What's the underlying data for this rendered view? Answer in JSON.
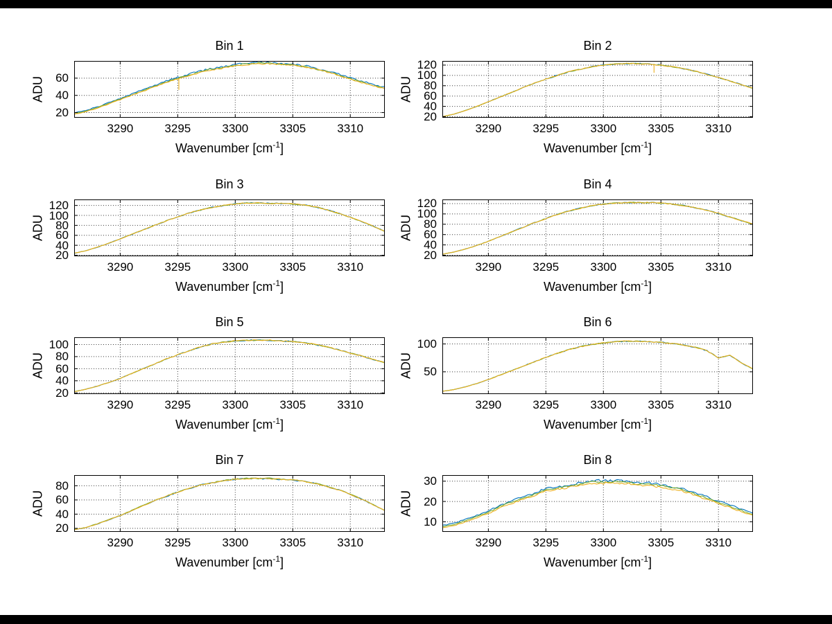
{
  "figure": {
    "background": "#ffffff",
    "frame_bar_color": "#000000",
    "grid_style": "dotted",
    "grid_color": "#333333",
    "axis_color": "#000000"
  },
  "x_values": [
    3286,
    3287,
    3288,
    3289,
    3290,
    3291,
    3292,
    3293,
    3294,
    3295,
    3296,
    3297,
    3298,
    3299,
    3300,
    3301,
    3302,
    3303,
    3304,
    3305,
    3306,
    3307,
    3308,
    3309,
    3310,
    3311,
    3312,
    3313
  ],
  "chart_data": [
    {
      "type": "line",
      "title": "Bin 1",
      "ylabel": "ADU",
      "xlabel": {
        "pre": "Wavenumber [cm",
        "sup": "-1",
        "post": "]"
      },
      "xlim": [
        3286,
        3313
      ],
      "ylim": [
        14,
        80
      ],
      "x_ticks": [
        3290,
        3295,
        3300,
        3305,
        3310
      ],
      "y_ticks": [
        20,
        40,
        60
      ],
      "grid": "dotted",
      "series": [
        {
          "name": "spectrum-blue",
          "color": "#0072BD",
          "delta": 1.5,
          "noise": 1.4
        },
        {
          "name": "spectrum-green",
          "color": "#77AC30",
          "delta": 0.7,
          "noise": 1.0
        },
        {
          "name": "spectrum-yellow",
          "color": "#EDB120",
          "noise": 1.0,
          "y": [
            18,
            21,
            25,
            30,
            35,
            40,
            45,
            50,
            55,
            59,
            63,
            67,
            70,
            72,
            74,
            76,
            77,
            77,
            76,
            75,
            73,
            70,
            67,
            63,
            59,
            55,
            51,
            48
          ]
        }
      ],
      "spikes": [
        {
          "x": 3295.1,
          "depth": 13,
          "color": "#EDB120"
        }
      ]
    },
    {
      "type": "line",
      "title": "Bin 2",
      "ylabel": "ADU",
      "xlabel": {
        "pre": "Wavenumber [cm",
        "sup": "-1",
        "post": "]"
      },
      "xlim": [
        3286,
        3313
      ],
      "ylim": [
        18,
        128
      ],
      "x_ticks": [
        3290,
        3295,
        3300,
        3305,
        3310
      ],
      "y_ticks": [
        20,
        40,
        60,
        80,
        100,
        120
      ],
      "grid": "dotted",
      "series": [
        {
          "name": "spectrum-blue",
          "color": "#0072BD",
          "delta": 0,
          "noise": 1.1
        },
        {
          "name": "spectrum-green",
          "color": "#77AC30",
          "delta": 0,
          "noise": 0.9
        },
        {
          "name": "spectrum-yellow",
          "color": "#EDB120",
          "noise": 1.0,
          "y": [
            20,
            25,
            32,
            40,
            49,
            58,
            67,
            76,
            85,
            93,
            100,
            107,
            112,
            117,
            120,
            122,
            123,
            123,
            122,
            120,
            117,
            113,
            108,
            102,
            96,
            89,
            82,
            75
          ]
        }
      ],
      "spikes": [
        {
          "x": 3304.4,
          "depth": 16,
          "color": "#EDB120"
        }
      ]
    },
    {
      "type": "line",
      "title": "Bin 3",
      "ylabel": "ADU",
      "xlabel": {
        "pre": "Wavenumber [cm",
        "sup": "-1",
        "post": "]"
      },
      "xlim": [
        3286,
        3313
      ],
      "ylim": [
        18,
        132
      ],
      "x_ticks": [
        3290,
        3295,
        3300,
        3305,
        3310
      ],
      "y_ticks": [
        20,
        40,
        60,
        80,
        100,
        120
      ],
      "grid": "dotted",
      "series": [
        {
          "name": "spectrum-blue",
          "color": "#0072BD",
          "delta": 0,
          "noise": 1.1
        },
        {
          "name": "spectrum-green",
          "color": "#77AC30",
          "delta": 0,
          "noise": 0.9
        },
        {
          "name": "spectrum-yellow",
          "color": "#EDB120",
          "noise": 1.0,
          "y": [
            24,
            29,
            36,
            44,
            53,
            62,
            71,
            80,
            89,
            97,
            105,
            111,
            116,
            120,
            123,
            125,
            125,
            124,
            124,
            123,
            121,
            117,
            111,
            104,
            96,
            88,
            78,
            68
          ]
        }
      ],
      "spikes": []
    },
    {
      "type": "line",
      "title": "Bin 4",
      "ylabel": "ADU",
      "xlabel": {
        "pre": "Wavenumber [cm",
        "sup": "-1",
        "post": "]"
      },
      "xlim": [
        3286,
        3313
      ],
      "ylim": [
        18,
        128
      ],
      "x_ticks": [
        3290,
        3295,
        3300,
        3305,
        3310
      ],
      "y_ticks": [
        20,
        40,
        60,
        80,
        100,
        120
      ],
      "grid": "dotted",
      "series": [
        {
          "name": "spectrum-blue",
          "color": "#0072BD",
          "delta": 0,
          "noise": 1.1
        },
        {
          "name": "spectrum-green",
          "color": "#77AC30",
          "delta": 0,
          "noise": 0.9
        },
        {
          "name": "spectrum-yellow",
          "color": "#EDB120",
          "noise": 1.0,
          "y": [
            22,
            26,
            32,
            39,
            47,
            56,
            65,
            74,
            83,
            91,
            99,
            106,
            111,
            116,
            119,
            121,
            122,
            122,
            122,
            121,
            119,
            116,
            112,
            107,
            101,
            94,
            87,
            80
          ]
        }
      ],
      "spikes": []
    },
    {
      "type": "line",
      "title": "Bin 5",
      "ylabel": "ADU",
      "xlabel": {
        "pre": "Wavenumber [cm",
        "sup": "-1",
        "post": "]"
      },
      "xlim": [
        3286,
        3313
      ],
      "ylim": [
        18,
        112
      ],
      "x_ticks": [
        3290,
        3295,
        3300,
        3305,
        3310
      ],
      "y_ticks": [
        20,
        40,
        60,
        80,
        100
      ],
      "grid": "dotted",
      "series": [
        {
          "name": "spectrum-blue",
          "color": "#0072BD",
          "delta": 0,
          "noise": 1.0
        },
        {
          "name": "spectrum-green",
          "color": "#77AC30",
          "delta": 0,
          "noise": 0.8
        },
        {
          "name": "spectrum-yellow",
          "color": "#EDB120",
          "noise": 1.0,
          "y": [
            22,
            26,
            31,
            37,
            44,
            52,
            60,
            68,
            76,
            83,
            90,
            96,
            101,
            104,
            106,
            107,
            107,
            107,
            106,
            105,
            103,
            100,
            96,
            91,
            86,
            81,
            75,
            70
          ]
        }
      ],
      "spikes": []
    },
    {
      "type": "line",
      "title": "Bin 6",
      "ylabel": "ADU",
      "xlabel": {
        "pre": "Wavenumber [cm",
        "sup": "-1",
        "post": "]"
      },
      "xlim": [
        3286,
        3313
      ],
      "ylim": [
        10,
        112
      ],
      "x_ticks": [
        3290,
        3295,
        3300,
        3305,
        3310
      ],
      "y_ticks": [
        50,
        100
      ],
      "grid": "dotted",
      "series": [
        {
          "name": "spectrum-blue",
          "color": "#0072BD",
          "delta": 0,
          "noise": 1.0
        },
        {
          "name": "spectrum-green",
          "color": "#77AC30",
          "delta": 0,
          "noise": 0.8
        },
        {
          "name": "spectrum-yellow",
          "color": "#EDB120",
          "noise": 0.9,
          "y": [
            15,
            18,
            23,
            29,
            36,
            44,
            52,
            60,
            68,
            76,
            83,
            90,
            95,
            99,
            102,
            104,
            105,
            105,
            104,
            103,
            101,
            98,
            94,
            88,
            75,
            80,
            66,
            55
          ]
        }
      ],
      "spikes": []
    },
    {
      "type": "line",
      "title": "Bin 7",
      "ylabel": "ADU",
      "xlabel": {
        "pre": "Wavenumber [cm",
        "sup": "-1",
        "post": "]"
      },
      "xlim": [
        3286,
        3313
      ],
      "ylim": [
        15,
        95
      ],
      "x_ticks": [
        3290,
        3295,
        3300,
        3305,
        3310
      ],
      "y_ticks": [
        20,
        40,
        60,
        80
      ],
      "grid": "dotted",
      "series": [
        {
          "name": "spectrum-blue",
          "color": "#0072BD",
          "delta": 0,
          "noise": 0.9
        },
        {
          "name": "spectrum-green",
          "color": "#77AC30",
          "delta": 0.3,
          "noise": 0.8
        },
        {
          "name": "spectrum-yellow",
          "color": "#EDB120",
          "noise": 0.8,
          "y": [
            18,
            21,
            26,
            32,
            38,
            45,
            52,
            59,
            65,
            71,
            76,
            81,
            84,
            87,
            89,
            90,
            90,
            90,
            89,
            88,
            86,
            83,
            79,
            74,
            68,
            61,
            53,
            45
          ]
        }
      ],
      "spikes": []
    },
    {
      "type": "line",
      "title": "Bin 8",
      "ylabel": "ADU",
      "xlabel": {
        "pre": "Wavenumber [cm",
        "sup": "-1",
        "post": "]"
      },
      "xlim": [
        3286,
        3313
      ],
      "ylim": [
        5,
        33
      ],
      "x_ticks": [
        3290,
        3295,
        3300,
        3305,
        3310
      ],
      "y_ticks": [
        10,
        20,
        30
      ],
      "grid": "dotted",
      "series": [
        {
          "name": "spectrum-blue",
          "color": "#0072BD",
          "delta": 1.2,
          "noise": 0.7
        },
        {
          "name": "spectrum-green",
          "color": "#77AC30",
          "delta": 0.6,
          "noise": 0.5
        },
        {
          "name": "spectrum-yellow",
          "color": "#EDB120",
          "noise": 0.5,
          "y": [
            7,
            8,
            10,
            12,
            14,
            17,
            19,
            21,
            23,
            25,
            26,
            27,
            28,
            29,
            29,
            29,
            29,
            28,
            28,
            27,
            26,
            25,
            23,
            21,
            19,
            17,
            15,
            13
          ]
        }
      ],
      "spikes": []
    }
  ]
}
